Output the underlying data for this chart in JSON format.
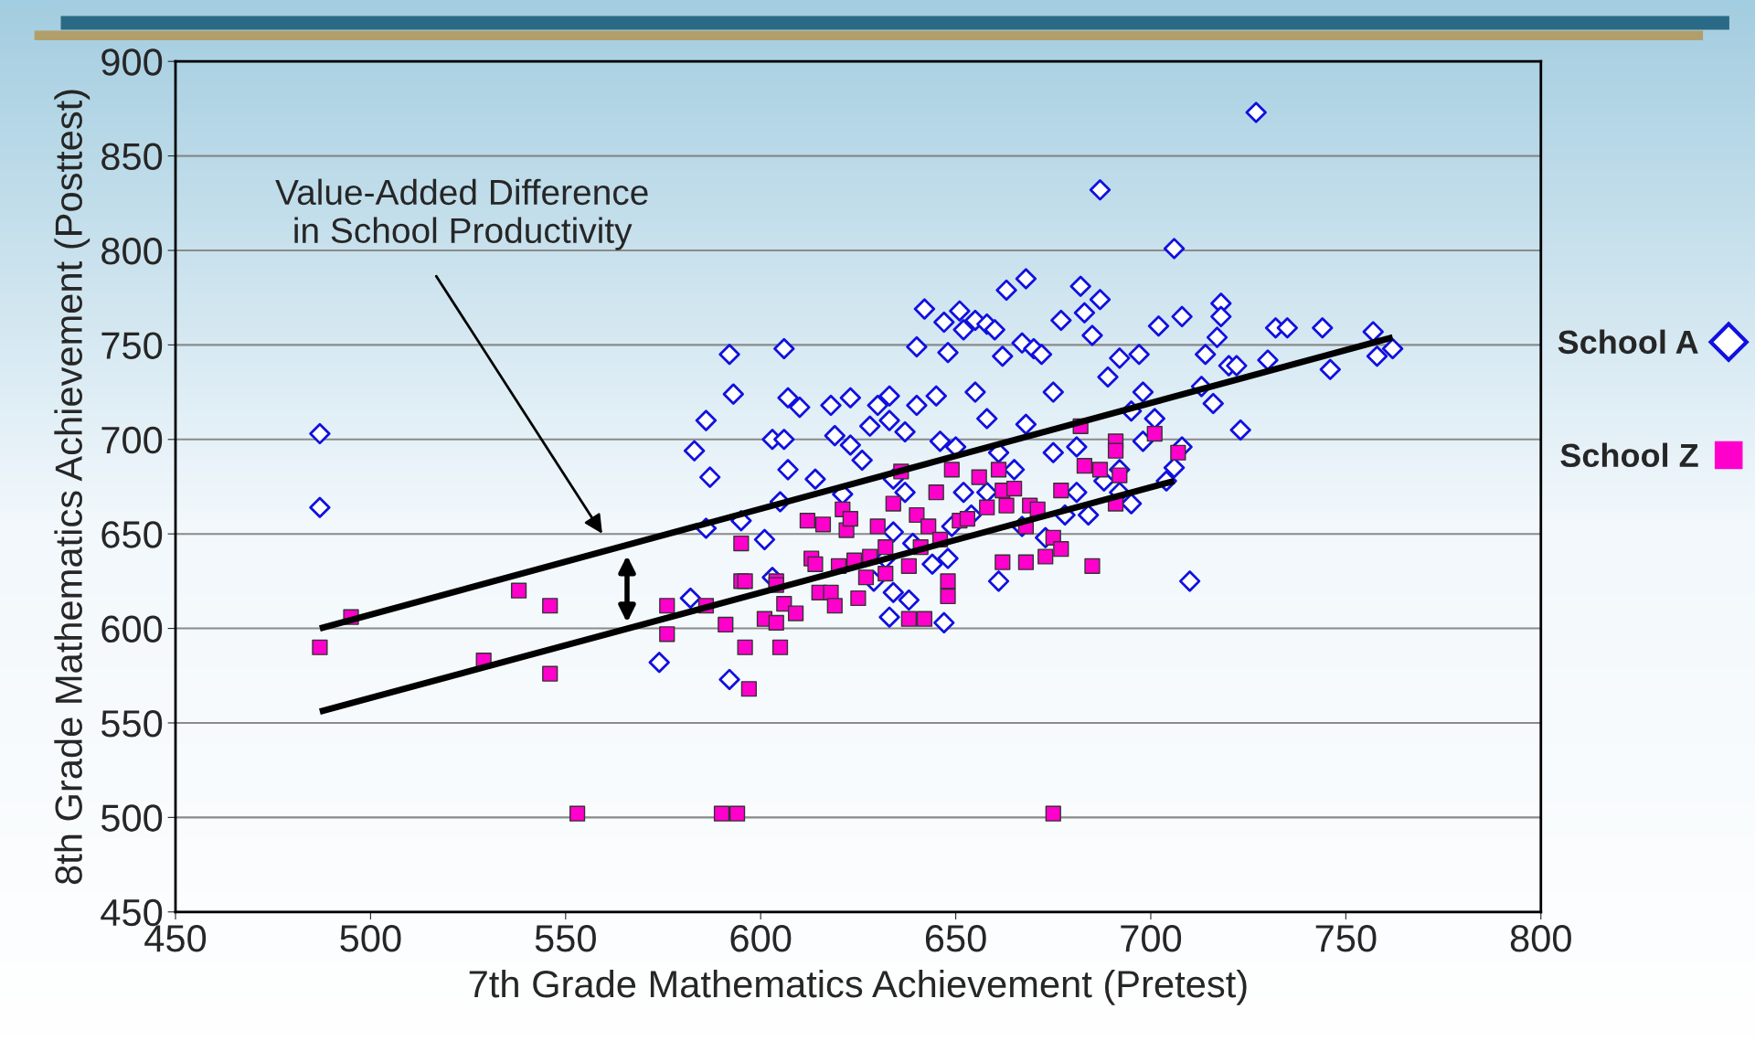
{
  "chart_data": {
    "type": "scatter",
    "xlabel": "7th Grade Mathematics Achievement (Pretest)",
    "ylabel": "8th Grade Mathematics Achievement (Posttest)",
    "xlim": [
      450,
      800
    ],
    "xticks": [
      450,
      500,
      550,
      600,
      650,
      700,
      750,
      800
    ],
    "ylim": [
      450,
      900
    ],
    "yticks": [
      450,
      500,
      550,
      600,
      650,
      700,
      750,
      800,
      850,
      900
    ],
    "grid": "y",
    "legend": "right",
    "annotations": [
      "Value-Added Difference\nin School Productivity"
    ],
    "series": [
      {
        "name": "School A",
        "marker": "diamond",
        "color": "#1010e0",
        "x": [
          487,
          487,
          574,
          582,
          583,
          586,
          587,
          586,
          592,
          593,
          592,
          595,
          601,
          603,
          606,
          607,
          610,
          606,
          607,
          605,
          603,
          614,
          618,
          619,
          621,
          623,
          623,
          626,
          628,
          630,
          633,
          633,
          634,
          637,
          640,
          640,
          642,
          645,
          647,
          648,
          651,
          652,
          655,
          658,
          660,
          662,
          663,
          667,
          668,
          670,
          672,
          677,
          682,
          683,
          687,
          687,
          685,
          689,
          692,
          697,
          702,
          706,
          708,
          718,
          718,
          717,
          714,
          720,
          722,
          727,
          730,
          732,
          735,
          744,
          757,
          762,
          758,
          746,
          723,
          710,
          706,
          708,
          698,
          695,
          701,
          692,
          688,
          681,
          675,
          668,
          665,
          661,
          658,
          654,
          649,
          648,
          644,
          639,
          634,
          632,
          629,
          634,
          633,
          647,
          638,
          646,
          650,
          655,
          658,
          637,
          652,
          661,
          667,
          673,
          678,
          684,
          692,
          704,
          695,
          681,
          675,
          713,
          716,
          698
        ],
        "values": [
          703,
          664,
          582,
          616,
          694,
          710,
          680,
          653,
          745,
          724,
          573,
          657,
          647,
          700,
          748,
          722,
          717,
          700,
          684,
          667,
          627,
          679,
          718,
          702,
          671,
          697,
          722,
          689,
          707,
          718,
          723,
          710,
          679,
          704,
          749,
          718,
          769,
          723,
          762,
          746,
          768,
          758,
          763,
          761,
          758,
          744,
          779,
          751,
          785,
          748,
          745,
          763,
          781,
          767,
          774,
          832,
          755,
          733,
          743,
          745,
          760,
          801,
          765,
          772,
          765,
          754,
          745,
          739,
          739,
          873,
          742,
          759,
          759,
          759,
          757,
          748,
          744,
          737,
          705,
          625,
          685,
          696,
          699,
          715,
          711,
          684,
          678,
          672,
          693,
          708,
          684,
          693,
          672,
          660,
          654,
          637,
          634,
          645,
          651,
          637,
          625,
          619,
          606,
          603,
          615,
          699,
          696,
          725,
          711,
          672,
          672,
          625,
          654,
          648,
          660,
          660,
          672,
          678,
          666,
          696,
          725,
          728,
          719,
          725
        ]
      },
      {
        "name": "School Z",
        "marker": "square",
        "color": "#ff00cc",
        "x": [
          487,
          495,
          529,
          538,
          546,
          546,
          553,
          576,
          576,
          586,
          590,
          594,
          591,
          595,
          595,
          596,
          596,
          597,
          601,
          604,
          604,
          605,
          604,
          606,
          609,
          612,
          613,
          614,
          616,
          615,
          618,
          619,
          620,
          621,
          622,
          623,
          624,
          625,
          627,
          628,
          630,
          632,
          632,
          634,
          636,
          638,
          638,
          640,
          641,
          642,
          643,
          645,
          646,
          648,
          648,
          649,
          651,
          653,
          656,
          658,
          661,
          662,
          662,
          663,
          665,
          668,
          668,
          669,
          671,
          673,
          675,
          677,
          675,
          677,
          682,
          683,
          685,
          687,
          691,
          691,
          691,
          692,
          701,
          707
        ],
        "values": [
          590,
          606,
          583,
          620,
          612,
          576,
          502,
          597,
          612,
          612,
          502,
          502,
          602,
          645,
          625,
          625,
          590,
          568,
          605,
          603,
          625,
          590,
          623,
          613,
          608,
          657,
          637,
          634,
          655,
          619,
          619,
          612,
          633,
          663,
          652,
          658,
          636,
          616,
          627,
          638,
          654,
          629,
          643,
          666,
          683,
          633,
          605,
          660,
          643,
          605,
          654,
          672,
          647,
          625,
          617,
          684,
          657,
          658,
          680,
          664,
          684,
          673,
          635,
          665,
          674,
          635,
          654,
          665,
          663,
          638,
          648,
          642,
          502,
          673,
          707,
          686,
          633,
          684,
          666,
          699,
          694,
          681,
          703,
          693
        ]
      },
      {
        "type": "line",
        "color": "#000000",
        "x": [
          487,
          762
        ],
        "values": [
          600,
          754
        ]
      },
      {
        "type": "line",
        "color": "#000000",
        "x": [
          487,
          706
        ],
        "values": [
          556,
          678
        ]
      }
    ]
  }
}
